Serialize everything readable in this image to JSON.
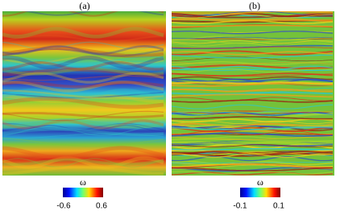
{
  "panels": [
    {
      "label": "(a)",
      "colorbar": {
        "label": "ω",
        "ticks": [
          "-0.6",
          "0.6"
        ]
      }
    },
    {
      "label": "(b)",
      "colorbar": {
        "label": "ω",
        "ticks": [
          "-0.1",
          "0.1"
        ]
      }
    }
  ]
}
